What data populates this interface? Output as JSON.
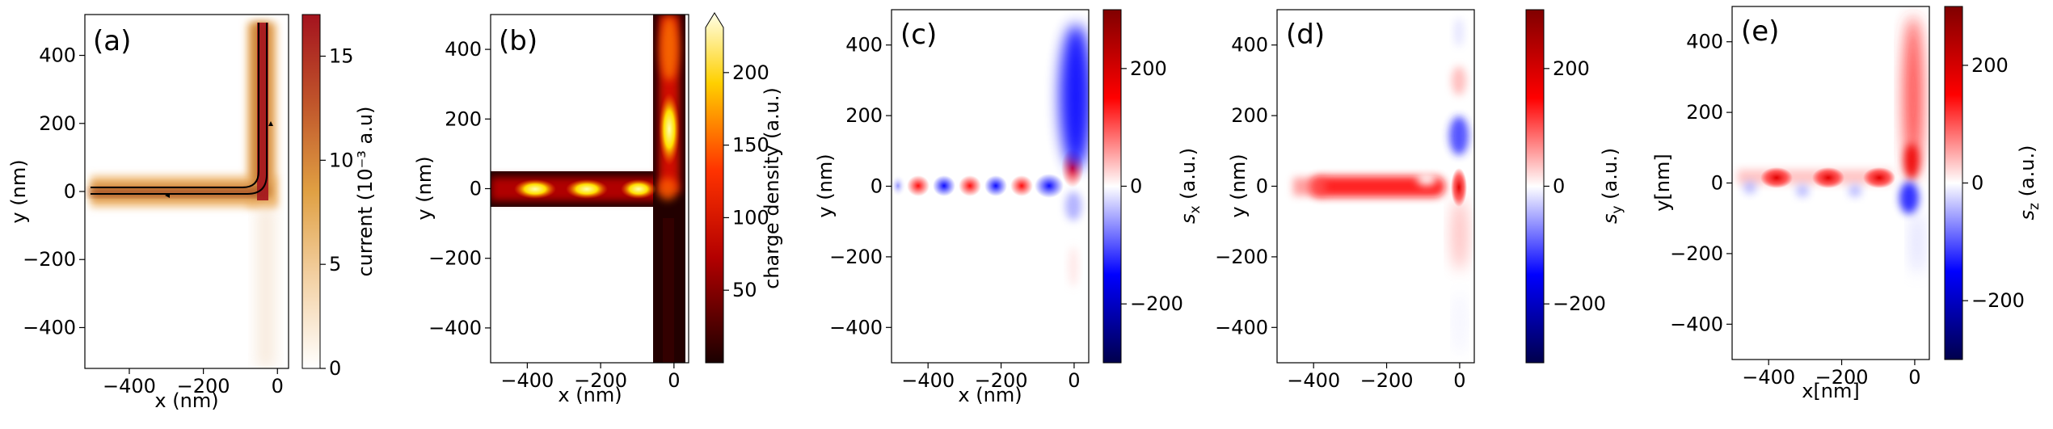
{
  "chart_data": [
    {
      "type": "heatmap",
      "panel_label": "(a)",
      "xlabel": "x (nm)",
      "ylabel": "y (nm)",
      "xlim": [
        -520,
        30
      ],
      "ylim": [
        -520,
        520
      ],
      "xticks": [
        -400,
        -200,
        0
      ],
      "yticks": [
        -400,
        -200,
        0,
        200,
        400
      ],
      "xtick_labels": [
        "−400",
        "−200",
        "0"
      ],
      "ytick_labels": [
        "−400",
        "−200",
        "0",
        "200",
        "400"
      ],
      "colormap": "white-orange-darkred",
      "colorbar": {
        "label": "current (10⁻³ a.u)",
        "range": [
          0,
          17
        ],
        "ticks": [
          0,
          5,
          10,
          15
        ],
        "tick_labels": [
          "0",
          "5",
          "10",
          "15"
        ]
      },
      "description_values": {
        "horizontal_arm_y_center_nm": 0,
        "vertical_arm_x_center_nm": 0,
        "arm_half_width_nm": 40,
        "current_peak_near_corner": 17
      }
    },
    {
      "type": "heatmap",
      "panel_label": "(b)",
      "xlabel": "x (nm)",
      "ylabel": "y (nm)",
      "xlim": [
        -500,
        40
      ],
      "ylim": [
        -500,
        500
      ],
      "xticks": [
        -400,
        -200,
        0
      ],
      "yticks": [
        -400,
        -200,
        0,
        200,
        400
      ],
      "xtick_labels": [
        "−400",
        "−200",
        "0"
      ],
      "ytick_labels": [
        "−400",
        "−200",
        "0",
        "200",
        "400"
      ],
      "colormap": "hot",
      "colorbar": {
        "label": "charge density (a.u.)",
        "range": [
          0,
          240
        ],
        "ticks": [
          50,
          100,
          150,
          200
        ],
        "tick_labels": [
          "50",
          "100",
          "150",
          "200"
        ],
        "extend": "max"
      },
      "description_values": {
        "density_maxima_x_nm": [
          -420,
          -250,
          -120
        ],
        "vertical_maximum_y_nm": 150
      }
    },
    {
      "type": "heatmap",
      "panel_label": "(c)",
      "xlabel": "x (nm)",
      "ylabel": "y (nm)",
      "xlim": [
        -500,
        40
      ],
      "ylim": [
        -500,
        500
      ],
      "xticks": [
        -400,
        -200,
        0
      ],
      "yticks": [
        -400,
        -200,
        0,
        200,
        400
      ],
      "xtick_labels": [
        "−400",
        "−200",
        "0"
      ],
      "ytick_labels": [
        "−400",
        "−200",
        "0",
        "200",
        "400"
      ],
      "colormap": "seismic",
      "colorbar": {
        "label_main": "s",
        "label_sub": "x",
        "label_unit": " (a.u.)",
        "range": [
          -300,
          300
        ],
        "ticks": [
          -200,
          0,
          200
        ],
        "tick_labels": [
          "−200",
          "0",
          "200"
        ]
      },
      "description_values": {
        "alternating_spots_x_nm": [
          -470,
          -400,
          -330,
          -260,
          -190,
          -120,
          -50
        ],
        "alternating_signs": [
          -1,
          1,
          -1,
          1,
          -1,
          1,
          -1
        ]
      }
    },
    {
      "type": "heatmap",
      "panel_label": "(d)",
      "xlabel": "",
      "ylabel": "y (nm)",
      "xlim": [
        -500,
        40
      ],
      "ylim": [
        -500,
        500
      ],
      "xticks": [
        -400,
        -200,
        0
      ],
      "yticks": [
        -400,
        -200,
        0,
        200,
        400
      ],
      "xtick_labels": [
        "−400",
        "−200",
        "0"
      ],
      "ytick_labels": [
        "−400",
        "−200",
        "0",
        "200",
        "400"
      ],
      "colormap": "seismic",
      "colorbar": {
        "label_main": "s",
        "label_sub": "y",
        "label_unit": " (a.u.)",
        "range": [
          -300,
          300
        ],
        "ticks": [
          -200,
          0,
          200
        ],
        "tick_labels": [
          "−200",
          "0",
          "200"
        ]
      }
    },
    {
      "type": "heatmap",
      "panel_label": "(e)",
      "xlabel": "x[nm]",
      "ylabel": "y[nm]",
      "xlim": [
        -500,
        40
      ],
      "ylim": [
        -500,
        500
      ],
      "xticks": [
        -400,
        -200,
        0
      ],
      "yticks": [
        -400,
        -200,
        0,
        200,
        400
      ],
      "xtick_labels": [
        "−400",
        "−200",
        "0"
      ],
      "ytick_labels": [
        "−400",
        "−200",
        "0",
        "200",
        "400"
      ],
      "colormap": "seismic",
      "colorbar": {
        "label_main": "s",
        "label_sub": "z",
        "label_unit": " (a.u.)",
        "range": [
          -300,
          300
        ],
        "ticks": [
          -200,
          0,
          200
        ],
        "tick_labels": [
          "−200",
          "0",
          "200"
        ]
      }
    }
  ]
}
